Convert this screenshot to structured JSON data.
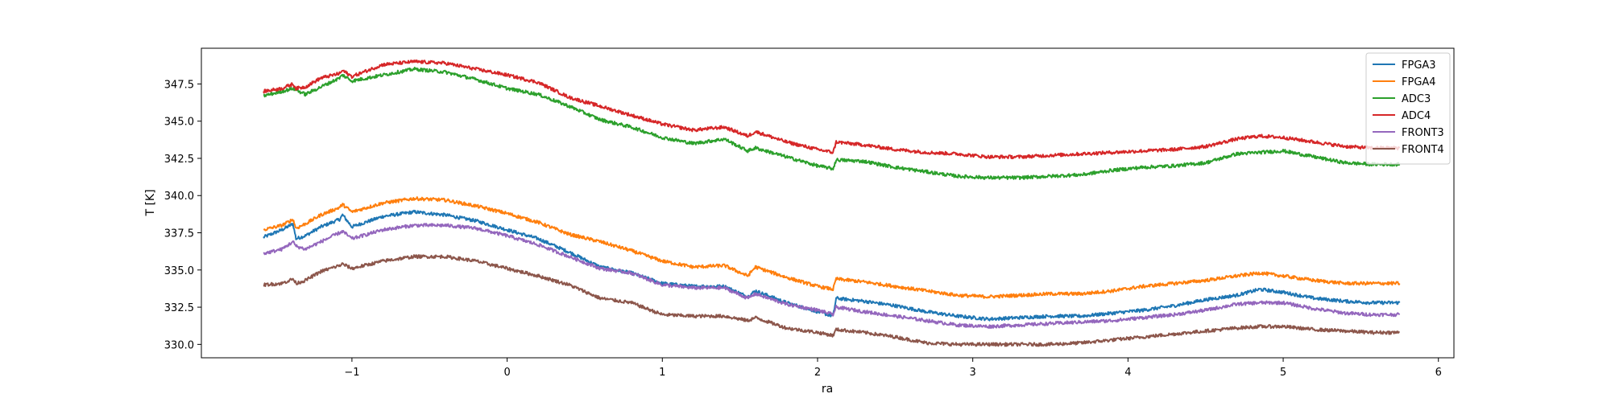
{
  "chart_data": {
    "type": "line",
    "title": "",
    "xlabel": "ra",
    "ylabel": "T [K]",
    "xlim": [
      -1.97,
      6.1
    ],
    "ylim": [
      329.1,
      349.9
    ],
    "xticks": [
      -1,
      0,
      1,
      2,
      3,
      4,
      5,
      6
    ],
    "xtick_labels": [
      "−1",
      "0",
      "1",
      "2",
      "3",
      "4",
      "5",
      "6"
    ],
    "yticks": [
      330.0,
      332.5,
      335.0,
      337.5,
      340.0,
      342.5,
      345.0,
      347.5
    ],
    "ytick_labels": [
      "330.0",
      "332.5",
      "335.0",
      "337.5",
      "340.0",
      "342.5",
      "345.0",
      "347.5"
    ],
    "grid": false,
    "legend_position": "top-right",
    "series": [
      {
        "name": "FPGA3",
        "color": "#1f77b4",
        "x": [
          -1.57,
          -1.45,
          -1.38,
          -1.36,
          -1.3,
          -1.2,
          -1.08,
          -1.06,
          -1.0,
          -0.8,
          -0.6,
          -0.4,
          -0.2,
          0.0,
          0.2,
          0.4,
          0.6,
          0.8,
          1.0,
          1.2,
          1.4,
          1.55,
          1.6,
          1.8,
          2.0,
          2.1,
          2.12,
          2.3,
          2.5,
          2.7,
          2.9,
          3.1,
          3.3,
          3.5,
          3.7,
          3.9,
          4.1,
          4.3,
          4.5,
          4.7,
          4.85,
          5.0,
          5.2,
          5.4,
          5.57,
          5.75
        ],
        "y": [
          337.2,
          337.7,
          338.1,
          337.1,
          337.3,
          337.9,
          338.4,
          338.7,
          337.9,
          338.6,
          338.9,
          338.7,
          338.3,
          337.7,
          337.1,
          336.2,
          335.2,
          334.8,
          334.1,
          333.9,
          333.9,
          333.2,
          333.6,
          332.8,
          332.2,
          331.9,
          333.1,
          332.9,
          332.6,
          332.2,
          331.9,
          331.7,
          331.8,
          331.9,
          331.9,
          332.1,
          332.3,
          332.6,
          333.0,
          333.3,
          333.7,
          333.5,
          333.1,
          332.9,
          332.8,
          332.8
        ]
      },
      {
        "name": "FPGA4",
        "color": "#ff7f0e",
        "x": [
          -1.57,
          -1.45,
          -1.38,
          -1.36,
          -1.3,
          -1.2,
          -1.08,
          -1.06,
          -1.0,
          -0.8,
          -0.6,
          -0.4,
          -0.2,
          0.0,
          0.2,
          0.4,
          0.6,
          0.8,
          1.0,
          1.2,
          1.4,
          1.55,
          1.6,
          1.8,
          2.0,
          2.1,
          2.12,
          2.3,
          2.5,
          2.7,
          2.9,
          3.1,
          3.3,
          3.5,
          3.7,
          3.9,
          4.1,
          4.3,
          4.5,
          4.7,
          4.85,
          5.0,
          5.2,
          5.4,
          5.57,
          5.75
        ],
        "y": [
          337.7,
          338.0,
          338.4,
          337.8,
          338.1,
          338.7,
          339.2,
          339.4,
          338.9,
          339.5,
          339.8,
          339.7,
          339.3,
          338.8,
          338.2,
          337.4,
          336.9,
          336.3,
          335.6,
          335.2,
          335.3,
          334.6,
          335.2,
          334.5,
          333.9,
          333.7,
          334.4,
          334.2,
          333.9,
          333.6,
          333.3,
          333.2,
          333.3,
          333.4,
          333.4,
          333.6,
          333.9,
          334.1,
          334.3,
          334.6,
          334.8,
          334.6,
          334.3,
          334.1,
          334.1,
          334.1
        ]
      },
      {
        "name": "ADC3",
        "color": "#2ca02c",
        "x": [
          -1.57,
          -1.45,
          -1.38,
          -1.36,
          -1.3,
          -1.2,
          -1.08,
          -1.06,
          -1.0,
          -0.8,
          -0.6,
          -0.4,
          -0.2,
          0.0,
          0.2,
          0.4,
          0.6,
          0.8,
          1.0,
          1.2,
          1.4,
          1.55,
          1.6,
          1.8,
          2.0,
          2.1,
          2.12,
          2.3,
          2.5,
          2.7,
          2.9,
          3.1,
          3.3,
          3.5,
          3.7,
          3.9,
          4.1,
          4.3,
          4.5,
          4.7,
          4.85,
          5.0,
          5.2,
          5.4,
          5.57,
          5.75
        ],
        "y": [
          346.7,
          347.0,
          347.2,
          347.1,
          346.8,
          347.3,
          347.9,
          348.1,
          347.7,
          348.1,
          348.5,
          348.3,
          347.8,
          347.2,
          346.8,
          346.0,
          345.1,
          344.6,
          343.9,
          343.5,
          343.8,
          343.0,
          343.2,
          342.6,
          342.0,
          341.8,
          342.4,
          342.3,
          341.9,
          341.6,
          341.3,
          341.2,
          341.2,
          341.3,
          341.4,
          341.7,
          341.9,
          342.0,
          342.2,
          342.8,
          342.9,
          343.0,
          342.6,
          342.2,
          342.1,
          342.1
        ]
      },
      {
        "name": "ADC4",
        "color": "#d62728",
        "x": [
          -1.57,
          -1.45,
          -1.38,
          -1.36,
          -1.3,
          -1.2,
          -1.08,
          -1.06,
          -1.0,
          -0.8,
          -0.6,
          -0.4,
          -0.2,
          0.0,
          0.2,
          0.4,
          0.6,
          0.8,
          1.0,
          1.2,
          1.4,
          1.55,
          1.6,
          1.8,
          2.0,
          2.1,
          2.12,
          2.3,
          2.5,
          2.7,
          2.9,
          3.1,
          3.3,
          3.5,
          3.7,
          3.9,
          4.1,
          4.3,
          4.5,
          4.7,
          4.85,
          5.0,
          5.2,
          5.4,
          5.57,
          5.75
        ],
        "y": [
          347.0,
          347.2,
          347.5,
          347.2,
          347.3,
          347.9,
          348.2,
          348.4,
          348.0,
          348.8,
          349.0,
          348.9,
          348.5,
          348.1,
          347.6,
          346.6,
          346.0,
          345.4,
          344.8,
          344.4,
          344.6,
          344.0,
          344.3,
          343.6,
          343.1,
          342.9,
          343.6,
          343.4,
          343.1,
          342.9,
          342.8,
          342.6,
          342.6,
          342.7,
          342.8,
          342.9,
          343.0,
          343.1,
          343.3,
          343.8,
          344.0,
          343.9,
          343.6,
          343.3,
          343.2,
          343.2
        ]
      },
      {
        "name": "FRONT3",
        "color": "#9467bd",
        "x": [
          -1.57,
          -1.45,
          -1.38,
          -1.36,
          -1.3,
          -1.2,
          -1.08,
          -1.06,
          -1.0,
          -0.8,
          -0.6,
          -0.4,
          -0.2,
          0.0,
          0.2,
          0.4,
          0.6,
          0.8,
          1.0,
          1.2,
          1.4,
          1.55,
          1.6,
          1.8,
          2.0,
          2.1,
          2.12,
          2.3,
          2.5,
          2.7,
          2.9,
          3.1,
          3.3,
          3.5,
          3.7,
          3.9,
          4.1,
          4.3,
          4.5,
          4.7,
          4.85,
          5.0,
          5.2,
          5.4,
          5.57,
          5.75
        ],
        "y": [
          336.1,
          336.4,
          336.9,
          336.6,
          336.4,
          336.9,
          337.5,
          337.6,
          337.1,
          337.7,
          338.0,
          338.0,
          337.8,
          337.3,
          336.7,
          335.9,
          335.1,
          334.8,
          334.0,
          333.8,
          333.8,
          333.1,
          333.4,
          332.7,
          332.3,
          332.0,
          332.5,
          332.2,
          331.9,
          331.6,
          331.3,
          331.2,
          331.3,
          331.4,
          331.5,
          331.6,
          331.8,
          332.0,
          332.3,
          332.7,
          332.8,
          332.8,
          332.4,
          332.1,
          332.0,
          332.0
        ]
      },
      {
        "name": "FRONT4",
        "color": "#8c564b",
        "x": [
          -1.57,
          -1.45,
          -1.38,
          -1.36,
          -1.3,
          -1.2,
          -1.08,
          -1.06,
          -1.0,
          -0.8,
          -0.6,
          -0.4,
          -0.2,
          0.0,
          0.2,
          0.4,
          0.6,
          0.8,
          1.0,
          1.2,
          1.4,
          1.55,
          1.6,
          1.8,
          2.0,
          2.1,
          2.12,
          2.3,
          2.5,
          2.7,
          2.9,
          3.1,
          3.3,
          3.5,
          3.7,
          3.9,
          4.1,
          4.3,
          4.5,
          4.7,
          4.85,
          5.0,
          5.2,
          5.4,
          5.57,
          5.75
        ],
        "y": [
          334.0,
          334.1,
          334.4,
          334.1,
          334.3,
          334.9,
          335.3,
          335.4,
          335.1,
          335.6,
          335.9,
          335.9,
          335.6,
          335.1,
          334.6,
          334.0,
          333.1,
          332.8,
          332.0,
          331.9,
          331.9,
          331.6,
          331.8,
          331.1,
          330.8,
          330.6,
          331.0,
          330.8,
          330.5,
          330.1,
          330.0,
          330.0,
          330.0,
          330.0,
          330.1,
          330.3,
          330.5,
          330.7,
          330.9,
          331.1,
          331.2,
          331.2,
          331.0,
          330.9,
          330.8,
          330.8
        ]
      }
    ]
  }
}
